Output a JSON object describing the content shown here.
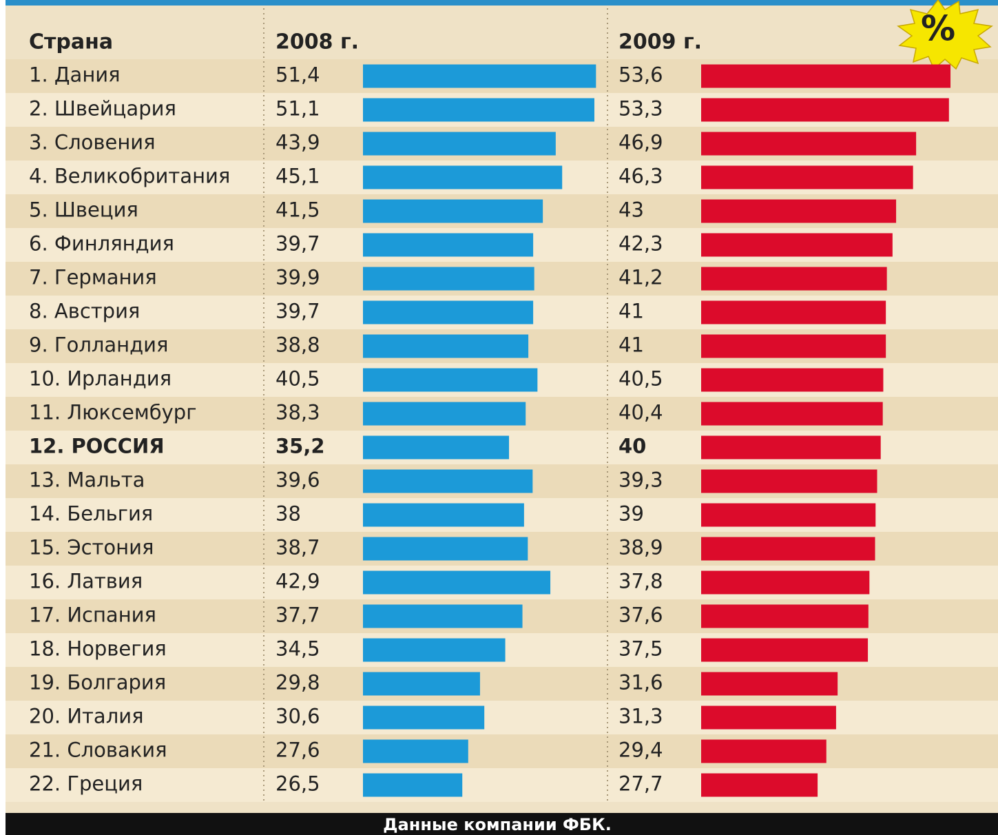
{
  "chart_data": {
    "type": "bar",
    "orientation": "horizontal",
    "category_header": "Страна",
    "badge": "%",
    "source": "Данные компании ФБК.",
    "emphasized_category": 11,
    "categories": [
      "1. Дания",
      "2. Швейцария",
      "3. Словения",
      "4. Великобритания",
      "5. Швеция",
      "6. Финляндия",
      "7. Германия",
      "8. Австрия",
      "9. Голландия",
      "10. Ирландия",
      "11. Люксембург",
      "12. РОССИЯ",
      "13. Мальта",
      "14. Бельгия",
      "15. Эстония",
      "16. Латвия",
      "17. Испания",
      "18. Норвегия",
      "19. Болгария",
      "20. Италия",
      "21. Словакия",
      "22. Греция"
    ],
    "series": [
      {
        "name": "2008 г.",
        "color": "#1c9ad8",
        "xlim": [
          8,
          52
        ],
        "values": [
          51.4,
          51.1,
          43.9,
          45.1,
          41.5,
          39.7,
          39.9,
          39.7,
          38.8,
          40.5,
          38.3,
          35.2,
          39.6,
          38,
          38.7,
          42.9,
          37.7,
          34.5,
          29.8,
          30.6,
          27.6,
          26.5
        ],
        "value_labels": [
          "51,4",
          "51,1",
          "43,9",
          "45,1",
          "41,5",
          "39,7",
          "39,9",
          "39,7",
          "38,8",
          "40,5",
          "38,3",
          "35,2",
          "39,6",
          "38",
          "38,7",
          "42,9",
          "37,7",
          "34,5",
          "29,8",
          "30,6",
          "27,6",
          "26,5"
        ]
      },
      {
        "name": "2009 г.",
        "color": "#dc0b2b",
        "xlim": [
          5,
          54
        ],
        "values": [
          53.6,
          53.3,
          46.9,
          46.3,
          43,
          42.3,
          41.2,
          41,
          41,
          40.5,
          40.4,
          40,
          39.3,
          39,
          38.9,
          37.8,
          37.6,
          37.5,
          31.6,
          31.3,
          29.4,
          27.7
        ],
        "value_labels": [
          "53,6",
          "53,3",
          "46,9",
          "46,3",
          "43",
          "42,3",
          "41,2",
          "41",
          "41",
          "40,5",
          "40,4",
          "40",
          "39,3",
          "39",
          "38,9",
          "37,8",
          "37,6",
          "37,5",
          "31,6",
          "31,3",
          "29,4",
          "27,7"
        ]
      }
    ]
  }
}
